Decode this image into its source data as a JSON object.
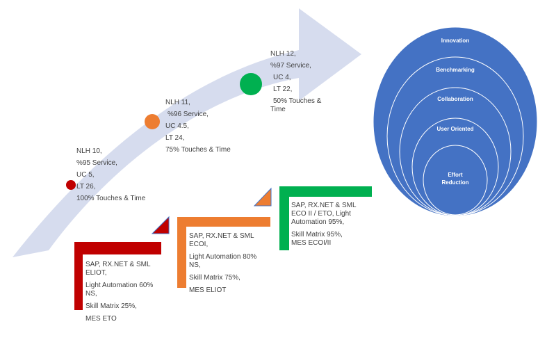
{
  "stages": [
    {
      "color": "#c00000",
      "lines": [
        "NLH 10,",
        "%95 Service,",
        "UC 5,",
        "LT 26,",
        "100% Touches & Time"
      ]
    },
    {
      "color": "#ed7d31",
      "lines": [
        "NLH 11,",
        "%96 Service,",
        "UC 4.5,",
        "LT 24,",
        "75% Touches & Time"
      ]
    },
    {
      "color": "#00b050",
      "lines": [
        "NLH 12,",
        "%97 Service,",
        "UC 4,",
        "LT 22,",
        "50% Touches &",
        "Time"
      ]
    }
  ],
  "steps": [
    {
      "color": "#c00000",
      "lines": [
        "SAP, RX.NET & SML",
        "ELIOT,",
        "Light Automation 60%",
        "NS,",
        "Skill Matrix 25%,",
        "MES ETO"
      ]
    },
    {
      "color": "#ed7d31",
      "lines": [
        "SAP, RX.NET & SML",
        "ECOI,",
        "Light Automation 80%",
        "NS,",
        "Skill Matrix 75%,",
        "MES ELIOT"
      ]
    },
    {
      "color": "#00b050",
      "lines": [
        "SAP, RX.NET & SML",
        "ECO II / ETO, Light",
        "Automation 95%,",
        "Skill Matrix 95%,",
        "MES ECOI/II"
      ]
    }
  ],
  "rings": {
    "fill": "#4472c4",
    "labels": [
      "Innovation",
      "Benchmarking",
      "Collaboration",
      "User Oriented",
      "Effort",
      "Reduction"
    ]
  },
  "arrow_color": "#d6dcee"
}
